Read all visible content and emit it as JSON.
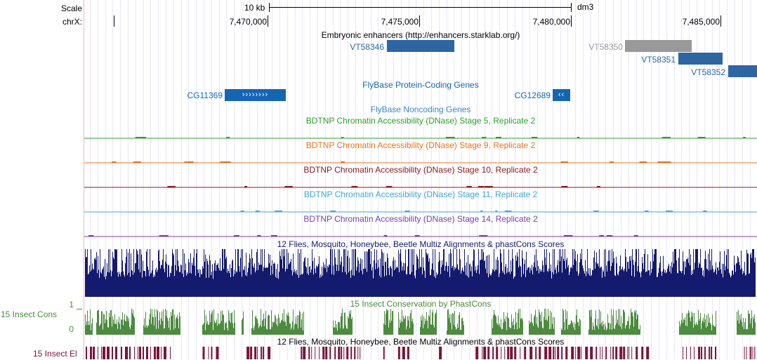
{
  "ruler": {
    "scale_label": "Scale",
    "chrom_label": "chrX:",
    "scale_bar_label": "10 kb",
    "assembly": "dm3",
    "positions": [
      "7,470,000",
      "7,475,000",
      "7,480,000",
      "7,485,000"
    ]
  },
  "tracks": {
    "enhancers": {
      "title": "Embryonic enhancers (http://enhancers.starklab.org/)",
      "items": [
        {
          "name": "VT58346",
          "color": "#2e65a3"
        },
        {
          "name": "VT58350",
          "color": "#999999"
        },
        {
          "name": "VT58351",
          "color": "#2e65a3"
        },
        {
          "name": "VT58352",
          "color": "#2e65a3"
        }
      ]
    },
    "flybase_coding": {
      "title": "FlyBase Protein-Coding Genes",
      "color": "#1565b0",
      "genes": [
        {
          "name": "CG11369",
          "strand_glyphs": "››››››››"
        },
        {
          "name": "CG12689",
          "strand_glyphs": "‹‹"
        }
      ]
    },
    "flybase_noncoding": {
      "title": "FlyBase Noncoding Genes",
      "color": "#3a87c8"
    },
    "dnase": [
      {
        "title": "BDTNP Chromatin Accessibility (DNase) Stage 5, Replicate 2",
        "color": "#2ca02c"
      },
      {
        "title": "BDTNP Chromatin Accessibility (DNase) Stage 9, Replicate 2",
        "color": "#e8741c"
      },
      {
        "title": "BDTNP Chromatin Accessibility (DNase) Stage 10, Replicate 2",
        "color": "#8b1a1a"
      },
      {
        "title": "BDTNP Chromatin Accessibility (DNase) Stage 11, Replicate 2",
        "color": "#45a6d8"
      },
      {
        "title": "BDTNP Chromatin Accessibility (DNase) Stage 14, Replicate 2",
        "color": "#7b3fa8"
      }
    ],
    "multiz": {
      "title": "12 Flies, Mosquito, Honeybee, Beetle Multiz Alignments & phastCons Scores",
      "color": "#141a6e"
    },
    "phastcons": {
      "title": "15 Insect Conservation by PhastCons",
      "side_label": "15 Insect Cons",
      "axis_max": "1",
      "axis_min": "0",
      "color": "#4d8b3f"
    },
    "elements": {
      "title": "12 Flies, Mosquito, Honeybee, Beetle Multiz Alignments & phastCons Scores",
      "side_label": "15 Insect El",
      "color": "#7a1437"
    }
  }
}
